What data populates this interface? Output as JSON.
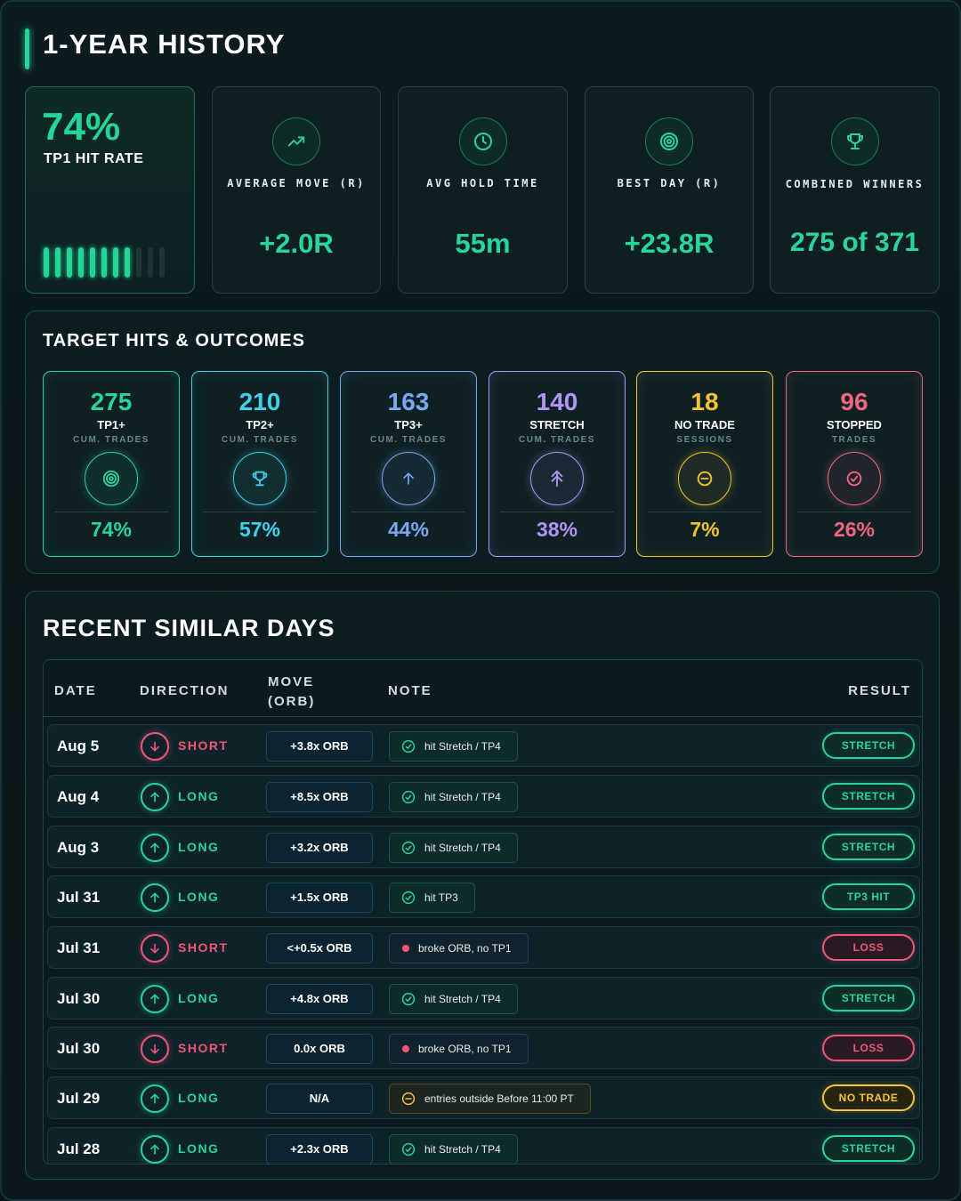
{
  "page": {
    "title": "1-YEAR HISTORY"
  },
  "hit_rate": {
    "value": "74%",
    "label": "TP1 HIT RATE",
    "bars_total": 11,
    "bars_lit": 8
  },
  "stats": [
    {
      "icon": "trend-up-icon",
      "label": "AVERAGE MOVE (R)",
      "value": "+2.0R"
    },
    {
      "icon": "clock-icon",
      "label": "AVG HOLD TIME",
      "value": "55m"
    },
    {
      "icon": "target-icon",
      "label": "BEST DAY (R)",
      "value": "+23.8R"
    },
    {
      "icon": "trophy-icon",
      "label": "COMBINED WINNERS",
      "value": "275 of 371"
    }
  ],
  "targets": {
    "title": "TARGET HITS & OUTCOMES",
    "items": [
      {
        "count": "275",
        "name": "TP1+",
        "sub": "CUM. TRADES",
        "pct": "74%",
        "icon": "target-icon",
        "color": "#2bd49b"
      },
      {
        "count": "210",
        "name": "TP2+",
        "sub": "CUM. TRADES",
        "pct": "57%",
        "icon": "trophy-icon",
        "color": "#3fd3ea"
      },
      {
        "count": "163",
        "name": "TP3+",
        "sub": "CUM. TRADES",
        "pct": "44%",
        "icon": "arrow-up-icon",
        "color": "#7aa9f2"
      },
      {
        "count": "140",
        "name": "STRETCH",
        "sub": "CUM. TRADES",
        "pct": "38%",
        "icon": "double-arrow-up-icon",
        "color": "#b395f5"
      },
      {
        "count": "18",
        "name": "NO TRADE",
        "sub": "SESSIONS",
        "pct": "7%",
        "icon": "minus-circle-icon",
        "color": "#f4c431"
      },
      {
        "count": "96",
        "name": "STOPPED",
        "sub": "TRADES",
        "pct": "26%",
        "icon": "check-circle-icon",
        "color": "#f0677f"
      }
    ]
  },
  "recent": {
    "title": "RECENT SIMILAR DAYS",
    "headers": {
      "date": "DATE",
      "direction": "DIRECTION",
      "move": "MOVE (ORB)",
      "note": "NOTE",
      "result": "RESULT"
    },
    "rows": [
      {
        "date": "Aug 5",
        "direction": "SHORT",
        "move": "+3.8x ORB",
        "note": "hit Stretch / TP4",
        "note_kind": "check",
        "result": "STRETCH",
        "result_kind": "win"
      },
      {
        "date": "Aug 4",
        "direction": "LONG",
        "move": "+8.5x ORB",
        "note": "hit Stretch / TP4",
        "note_kind": "check",
        "result": "STRETCH",
        "result_kind": "win"
      },
      {
        "date": "Aug 3",
        "direction": "LONG",
        "move": "+3.2x ORB",
        "note": "hit Stretch / TP4",
        "note_kind": "check",
        "result": "STRETCH",
        "result_kind": "win"
      },
      {
        "date": "Jul 31",
        "direction": "LONG",
        "move": "+1.5x ORB",
        "note": "hit TP3",
        "note_kind": "check",
        "result": "TP3 HIT",
        "result_kind": "win"
      },
      {
        "date": "Jul 31",
        "direction": "SHORT",
        "move": "<+0.5x ORB",
        "note": "broke ORB, no TP1",
        "note_kind": "dot",
        "result": "LOSS",
        "result_kind": "loss"
      },
      {
        "date": "Jul 30",
        "direction": "LONG",
        "move": "+4.8x ORB",
        "note": "hit Stretch / TP4",
        "note_kind": "check",
        "result": "STRETCH",
        "result_kind": "win"
      },
      {
        "date": "Jul 30",
        "direction": "SHORT",
        "move": "0.0x ORB",
        "note": "broke ORB, no TP1",
        "note_kind": "dot",
        "result": "LOSS",
        "result_kind": "loss"
      },
      {
        "date": "Jul 29",
        "direction": "LONG",
        "move": "N/A",
        "note": "entries outside Before 11:00 PT",
        "note_kind": "minus",
        "result": "NO TRADE",
        "result_kind": "none"
      },
      {
        "date": "Jul 28",
        "direction": "LONG",
        "move": "+2.3x ORB",
        "note": "hit Stretch / TP4",
        "note_kind": "check",
        "result": "STRETCH",
        "result_kind": "win"
      }
    ]
  },
  "colors": {
    "green": "#27d49a",
    "red": "#f0577a",
    "yellow": "#f4c431"
  }
}
